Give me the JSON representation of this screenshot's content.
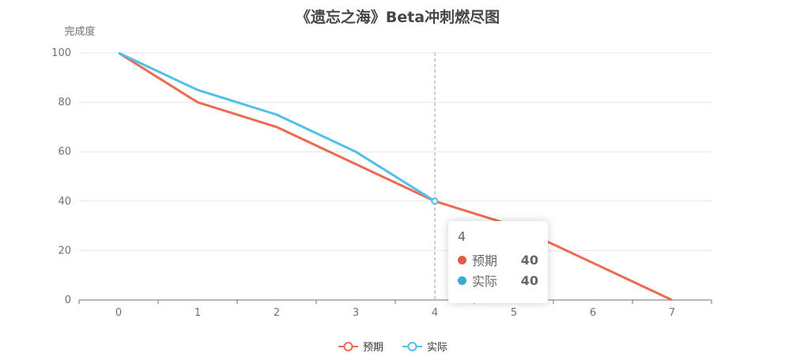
{
  "chart_data": {
    "type": "line",
    "title": "《遗忘之海》Beta冲刺燃尽图",
    "ylabel": "完成度",
    "xlabel": "",
    "x": [
      0,
      1,
      2,
      3,
      4,
      5,
      6,
      7
    ],
    "ylim": [
      0,
      100
    ],
    "yticks": [
      0,
      20,
      40,
      60,
      80,
      100
    ],
    "grid": true,
    "legend_position": "bottom",
    "series": [
      {
        "name": "预期",
        "color": "#ee6a50",
        "values": [
          100,
          80,
          70,
          55,
          40,
          30,
          15,
          0
        ]
      },
      {
        "name": "实际",
        "color": "#4fc1e9",
        "values": [
          100,
          85,
          75,
          60,
          40,
          null,
          null,
          null
        ]
      }
    ],
    "tooltip": {
      "title": "4",
      "rows": [
        {
          "name": "预期",
          "value": "40",
          "color": "#e15b41"
        },
        {
          "name": "实际",
          "value": "40",
          "color": "#3aa9d6"
        }
      ]
    }
  }
}
